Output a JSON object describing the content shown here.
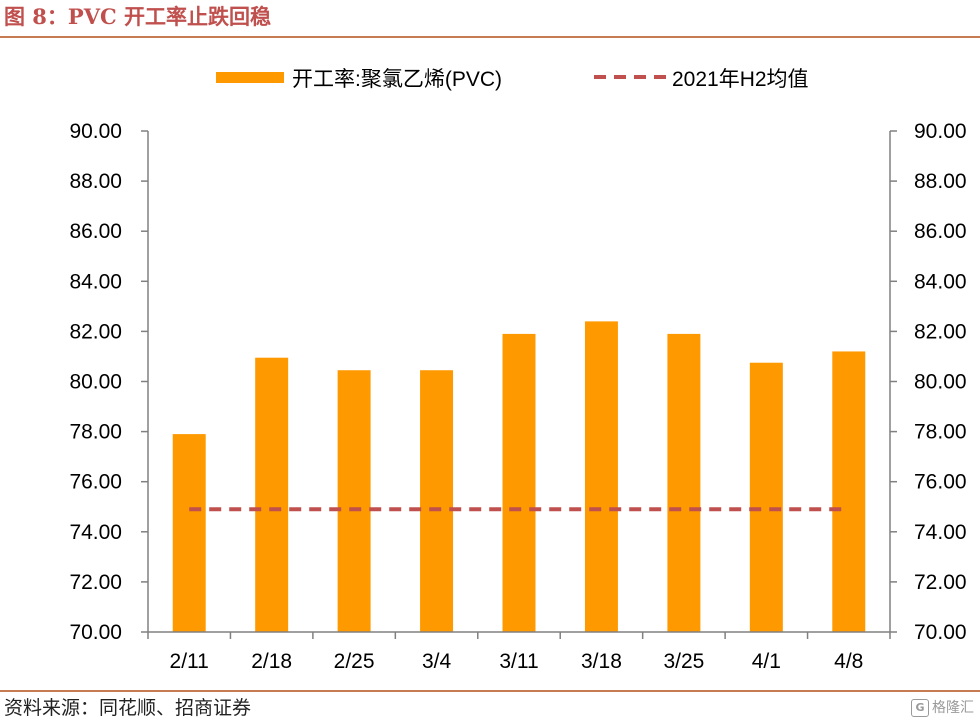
{
  "figure": {
    "title": "图 8：PVC 开工率止跌回稳",
    "source": "资料来源：同花顺、招商证券",
    "watermark": "格隆汇"
  },
  "colors": {
    "title": "#c0504d",
    "rule": "#c77b52",
    "bar": "#ff9900",
    "reference_line": "#c0504d",
    "axis": "#808080"
  },
  "chart_data": {
    "type": "bar",
    "categories": [
      "2/11",
      "2/18",
      "2/25",
      "3/4",
      "3/11",
      "3/18",
      "3/25",
      "4/1",
      "4/8"
    ],
    "series": [
      {
        "name": "开工率:聚氯乙烯(PVC)",
        "type": "bar",
        "values": [
          77.9,
          80.95,
          80.45,
          80.45,
          81.9,
          82.4,
          81.9,
          80.75,
          81.2
        ]
      },
      {
        "name": "2021年H2均值",
        "type": "line",
        "style": "dashed",
        "values": [
          74.9,
          74.9,
          74.9,
          74.9,
          74.9,
          74.9,
          74.9,
          74.9,
          74.9
        ]
      }
    ],
    "ylim": [
      70,
      90
    ],
    "yticks": [
      "70.00",
      "72.00",
      "74.00",
      "76.00",
      "78.00",
      "80.00",
      "82.00",
      "84.00",
      "86.00",
      "88.00",
      "90.00"
    ],
    "y2ticks": [
      "70.00",
      "72.00",
      "74.00",
      "76.00",
      "78.00",
      "80.00",
      "82.00",
      "84.00",
      "86.00",
      "88.00",
      "90.00"
    ],
    "legend": "top",
    "grid": false
  }
}
